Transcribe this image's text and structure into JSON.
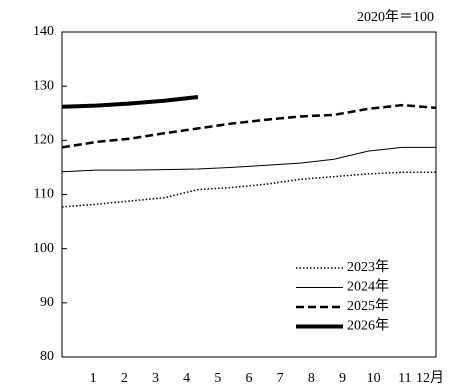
{
  "chart_data": {
    "type": "line",
    "note": "2020年＝100",
    "categories": [
      "1",
      "2",
      "3",
      "4",
      "5",
      "6",
      "7",
      "8",
      "9",
      "10",
      "11",
      "12月"
    ],
    "ylim": [
      80,
      140
    ],
    "yticks": [
      80,
      90,
      100,
      110,
      120,
      130,
      140
    ],
    "series": [
      {
        "name": "2023年",
        "color": "#000000",
        "style": "dotted",
        "width": 1.5,
        "values": [
          107.7,
          108.2,
          108.8,
          109.4,
          110.9,
          111.3,
          111.9,
          112.8,
          113.3,
          113.8,
          114.1,
          114.1
        ]
      },
      {
        "name": "2024年",
        "color": "#000000",
        "style": "solid",
        "width": 1,
        "values": [
          114.2,
          114.5,
          114.5,
          114.6,
          114.7,
          115.0,
          115.4,
          115.8,
          116.5,
          118.0,
          118.7,
          118.7
        ]
      },
      {
        "name": "2025年",
        "color": "#000000",
        "style": "dashed",
        "width": 2.5,
        "values": [
          118.7,
          119.7,
          120.3,
          121.3,
          122.2,
          123.1,
          123.8,
          124.4,
          124.7,
          125.8,
          126.5,
          126.0
        ]
      },
      {
        "name": "2026年",
        "color": "#000000",
        "style": "solid",
        "width": 4,
        "values": [
          126.2,
          126.4,
          126.8,
          127.3,
          128.0,
          null,
          null,
          null,
          null,
          null,
          null,
          null
        ]
      }
    ]
  }
}
